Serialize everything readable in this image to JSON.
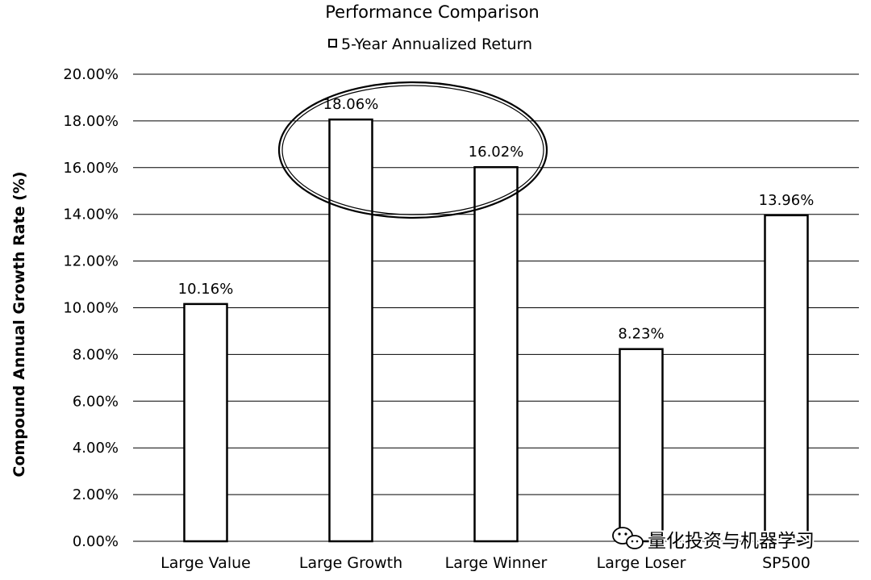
{
  "chart_data": {
    "type": "bar",
    "title": "Performance Comparison",
    "legend": {
      "entries": [
        "5-Year Annualized Return"
      ],
      "placement": "top"
    },
    "ylabel": "Compound Annual Growth Rate (%)",
    "xlabel": "",
    "categories": [
      "Large Value",
      "Large Growth",
      "Large Winner",
      "Large Loser",
      "SP500"
    ],
    "series": [
      {
        "name": "5-Year Annualized Return",
        "values": [
          10.16,
          18.06,
          16.02,
          8.23,
          13.96
        ],
        "labels": [
          "10.16%",
          "18.06%",
          "16.02%",
          "8.23%",
          "13.96%"
        ]
      }
    ],
    "ylim": [
      0,
      20
    ],
    "yticks": [
      0,
      2,
      4,
      6,
      8,
      10,
      12,
      14,
      16,
      18,
      20
    ],
    "ytick_labels": [
      "0.00%",
      "2.00%",
      "4.00%",
      "6.00%",
      "8.00%",
      "10.00%",
      "12.00%",
      "14.00%",
      "16.00%",
      "18.00%",
      "20.00%"
    ],
    "grid": true,
    "annotations": [
      {
        "type": "ellipse",
        "highlights": [
          "Large Growth",
          "Large Winner"
        ]
      }
    ]
  },
  "watermark": {
    "text": "量化投资与机器学习",
    "icon": "wechat-icon"
  }
}
